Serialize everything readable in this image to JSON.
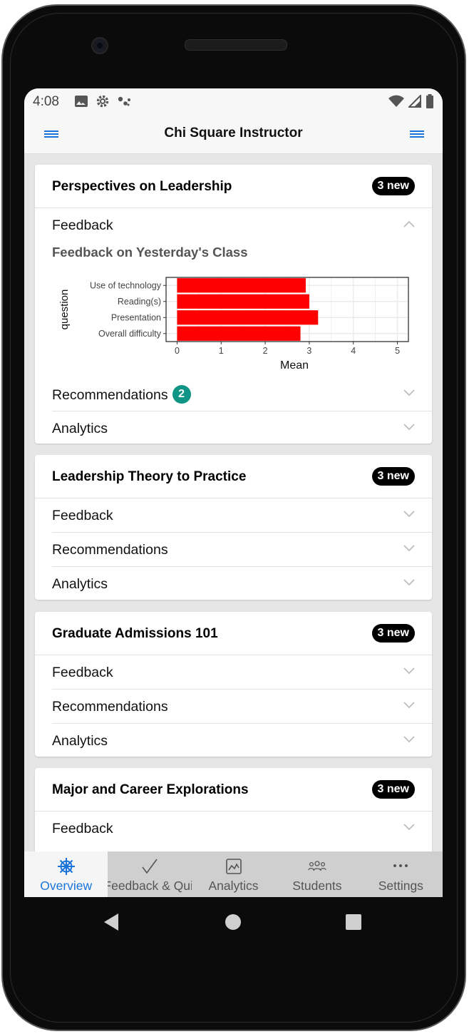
{
  "status_bar": {
    "time": "4:08"
  },
  "app_bar": {
    "title": "Chi Square Instructor"
  },
  "courses": [
    {
      "title": "Perspectives on Leadership",
      "badge": "3 new",
      "sections": {
        "feedback": "Feedback",
        "recommendations": "Recommendations",
        "recommendations_count": "2",
        "analytics": "Analytics"
      },
      "feedback_heading": "Feedback on Yesterday's Class"
    },
    {
      "title": "Leadership Theory to Practice",
      "badge": "3 new",
      "sections": {
        "feedback": "Feedback",
        "recommendations": "Recommendations",
        "analytics": "Analytics"
      }
    },
    {
      "title": "Graduate Admissions 101",
      "badge": "3 new",
      "sections": {
        "feedback": "Feedback",
        "recommendations": "Recommendations",
        "analytics": "Analytics"
      }
    },
    {
      "title": "Major and Career Explorations",
      "badge": "3 new",
      "sections": {
        "feedback": "Feedback"
      }
    }
  ],
  "chart_data": {
    "type": "bar",
    "orientation": "horizontal",
    "categories": [
      "Use of technology",
      "Reading(s)",
      "Presentation",
      "Overall difficulty"
    ],
    "values": [
      2.92,
      3.0,
      3.2,
      2.8
    ],
    "xlabel": "Mean",
    "ylabel": "question",
    "xticks": [
      "0",
      "1",
      "2",
      "3",
      "4",
      "5"
    ],
    "xlim": [
      -0.25,
      5.25
    ],
    "bar_color": "#ff0000",
    "grid": true
  },
  "tabs": [
    {
      "label": "Overview",
      "icon": "helm-icon"
    },
    {
      "label": "Feedback & Quiz",
      "icon": "check-icon"
    },
    {
      "label": "Analytics",
      "icon": "analytics-icon"
    },
    {
      "label": "Students",
      "icon": "students-icon"
    },
    {
      "label": "Settings",
      "icon": "more-icon"
    }
  ],
  "colors": {
    "accent": "#1a73d9",
    "badge_bg": "#000000",
    "count_badge": "#0f9485",
    "bar": "#ff0000"
  }
}
